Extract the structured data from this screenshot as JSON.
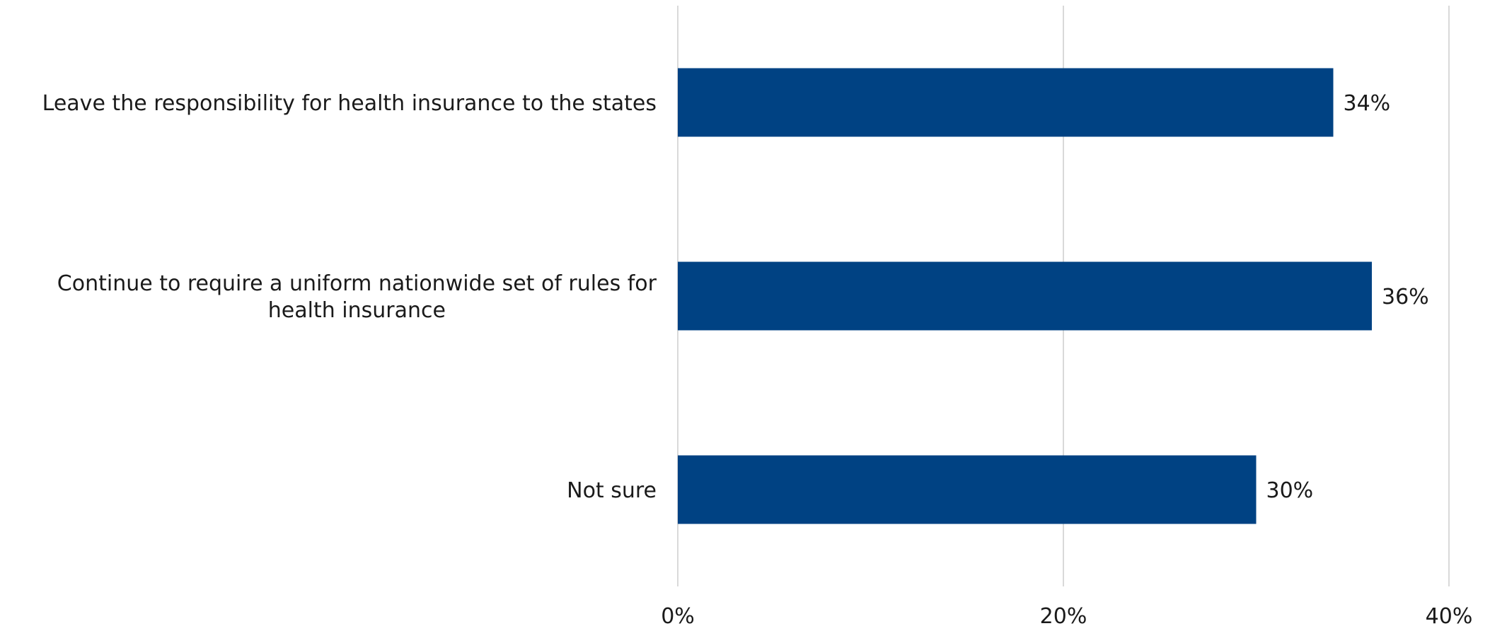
{
  "chart_data": {
    "type": "bar",
    "orientation": "horizontal",
    "categories": [
      "Leave the responsibility for health insurance to the states",
      "Continue to require a uniform nationwide set of rules for health insurance",
      "Not sure"
    ],
    "category_lines": [
      [
        "Leave the responsibility for health insurance to the states"
      ],
      [
        "Continue to require a uniform nationwide set of rules for",
        "health insurance"
      ],
      [
        "Not sure"
      ]
    ],
    "values": [
      34,
      36,
      30
    ],
    "value_labels": [
      "34%",
      "36%",
      "30%"
    ],
    "xlim": [
      0,
      40
    ],
    "xticks": [
      0,
      20,
      40
    ],
    "xtick_labels": [
      "0%",
      "20%",
      "40%"
    ],
    "grid": true,
    "legend": "none",
    "bar_color": "#004283",
    "grid_color": "#d9d9d9"
  }
}
